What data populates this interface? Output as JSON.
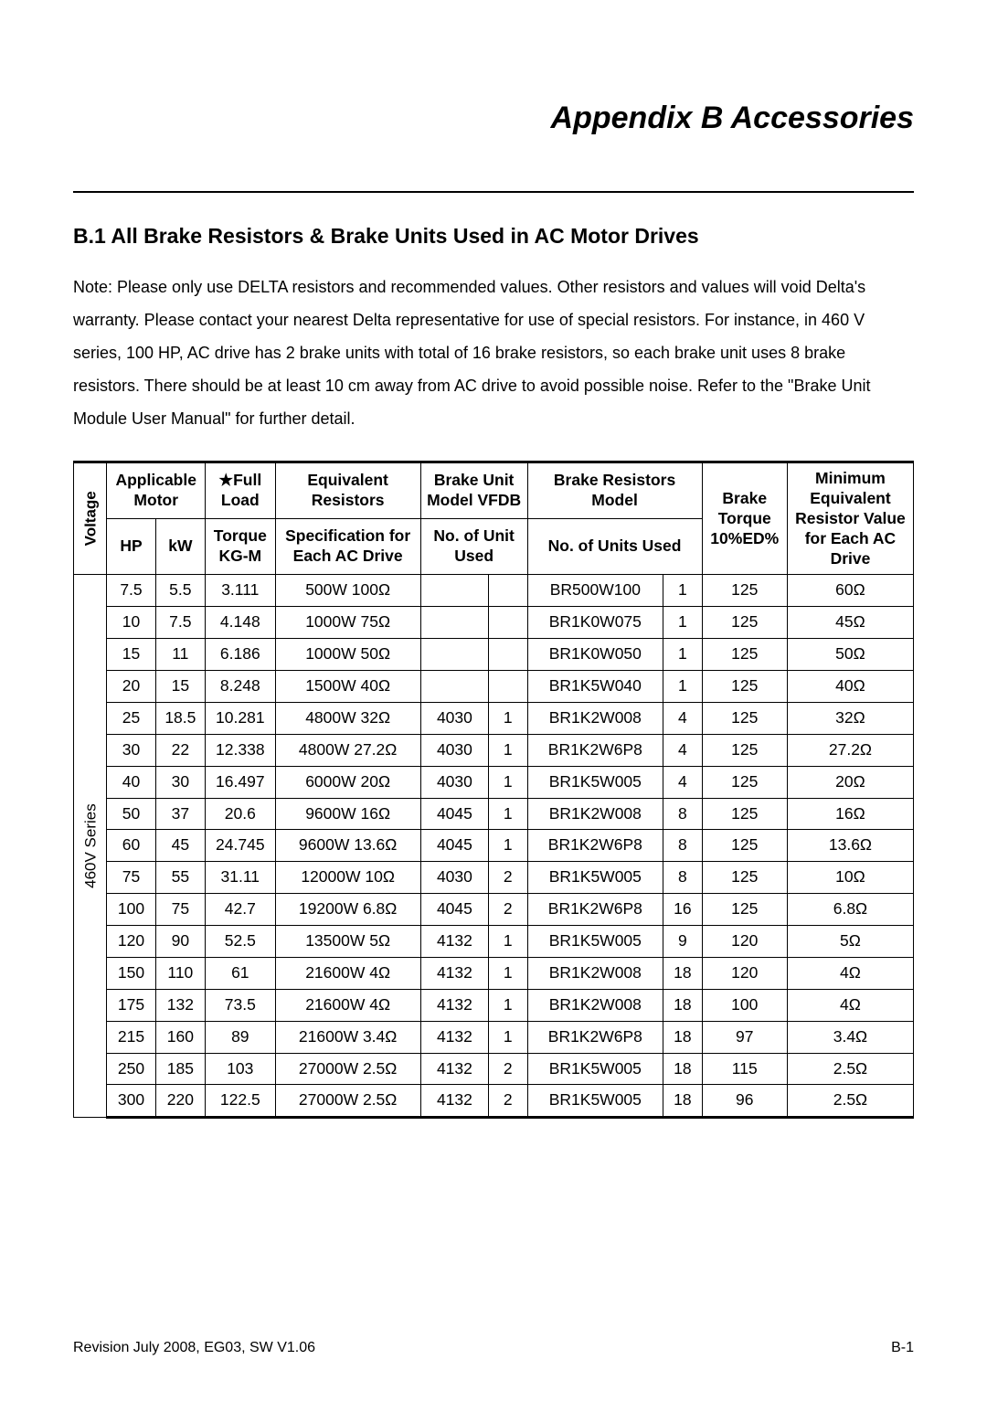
{
  "title": "Appendix B Accessories",
  "section_heading": "B.1 All Brake Resistors & Brake Units Used in AC Motor Drives",
  "note": "Note: Please only use DELTA resistors and recommended values. Other resistors and values will void Delta's warranty. Please contact your nearest Delta representative for use of special resistors. For instance, in 460 V series, 100 HP, AC drive has 2 brake units with total of 16 brake resistors, so each brake unit uses 8 brake resistors. There should be at least 10 cm away from AC drive to avoid possible noise. Refer to the \"Brake Unit Module User Manual\" for further detail.",
  "table": {
    "headers": {
      "voltage": "Voltage",
      "applicable_motor": "Applicable Motor",
      "hp": "HP",
      "kw": "kW",
      "full_load": "★Full Load",
      "torque_kgm": "Torque KG-M",
      "equiv_resistors": "Equivalent Resistors",
      "spec_each_drive": "Specification for Each AC Drive",
      "brake_unit": "Brake Unit Model VFDB",
      "brake_unit_used": "No. of Unit Used",
      "brake_resistors": "Brake Resistors Model",
      "resistors_used": "No. of Units Used",
      "brake_torque": "Brake Torque 10%ED%",
      "min_equiv": "Minimum Equivalent Resistor Value for Each AC Drive"
    },
    "voltage_label": "460V Series",
    "rows": [
      {
        "hp": "7.5",
        "kw": "5.5",
        "torque": "3.111",
        "spec": "500W 100Ω",
        "bu_model": "",
        "bu_num": "",
        "res_model": "BR500W100",
        "res_num": "1",
        "btorque": "125",
        "min": "60Ω"
      },
      {
        "hp": "10",
        "kw": "7.5",
        "torque": "4.148",
        "spec": "1000W 75Ω",
        "bu_model": "",
        "bu_num": "",
        "res_model": "BR1K0W075",
        "res_num": "1",
        "btorque": "125",
        "min": "45Ω"
      },
      {
        "hp": "15",
        "kw": "11",
        "torque": "6.186",
        "spec": "1000W 50Ω",
        "bu_model": "",
        "bu_num": "",
        "res_model": "BR1K0W050",
        "res_num": "1",
        "btorque": "125",
        "min": "50Ω"
      },
      {
        "hp": "20",
        "kw": "15",
        "torque": "8.248",
        "spec": "1500W 40Ω",
        "bu_model": "",
        "bu_num": "",
        "res_model": "BR1K5W040",
        "res_num": "1",
        "btorque": "125",
        "min": "40Ω"
      },
      {
        "hp": "25",
        "kw": "18.5",
        "torque": "10.281",
        "spec": "4800W 32Ω",
        "bu_model": "4030",
        "bu_num": "1",
        "res_model": "BR1K2W008",
        "res_num": "4",
        "btorque": "125",
        "min": "32Ω"
      },
      {
        "hp": "30",
        "kw": "22",
        "torque": "12.338",
        "spec": "4800W 27.2Ω",
        "bu_model": "4030",
        "bu_num": "1",
        "res_model": "BR1K2W6P8",
        "res_num": "4",
        "btorque": "125",
        "min": "27.2Ω"
      },
      {
        "hp": "40",
        "kw": "30",
        "torque": "16.497",
        "spec": "6000W 20Ω",
        "bu_model": "4030",
        "bu_num": "1",
        "res_model": "BR1K5W005",
        "res_num": "4",
        "btorque": "125",
        "min": "20Ω"
      },
      {
        "hp": "50",
        "kw": "37",
        "torque": "20.6",
        "spec": "9600W 16Ω",
        "bu_model": "4045",
        "bu_num": "1",
        "res_model": "BR1K2W008",
        "res_num": "8",
        "btorque": "125",
        "min": "16Ω"
      },
      {
        "hp": "60",
        "kw": "45",
        "torque": "24.745",
        "spec": "9600W 13.6Ω",
        "bu_model": "4045",
        "bu_num": "1",
        "res_model": "BR1K2W6P8",
        "res_num": "8",
        "btorque": "125",
        "min": "13.6Ω"
      },
      {
        "hp": "75",
        "kw": "55",
        "torque": "31.11",
        "spec": "12000W 10Ω",
        "bu_model": "4030",
        "bu_num": "2",
        "res_model": "BR1K5W005",
        "res_num": "8",
        "btorque": "125",
        "min": "10Ω"
      },
      {
        "hp": "100",
        "kw": "75",
        "torque": "42.7",
        "spec": "19200W 6.8Ω",
        "bu_model": "4045",
        "bu_num": "2",
        "res_model": "BR1K2W6P8",
        "res_num": "16",
        "btorque": "125",
        "min": "6.8Ω"
      },
      {
        "hp": "120",
        "kw": "90",
        "torque": "52.5",
        "spec": "13500W 5Ω",
        "bu_model": "4132",
        "bu_num": "1",
        "res_model": "BR1K5W005",
        "res_num": "9",
        "btorque": "120",
        "min": "5Ω"
      },
      {
        "hp": "150",
        "kw": "110",
        "torque": "61",
        "spec": "21600W 4Ω",
        "bu_model": "4132",
        "bu_num": "1",
        "res_model": "BR1K2W008",
        "res_num": "18",
        "btorque": "120",
        "min": "4Ω"
      },
      {
        "hp": "175",
        "kw": "132",
        "torque": "73.5",
        "spec": "21600W 4Ω",
        "bu_model": "4132",
        "bu_num": "1",
        "res_model": "BR1K2W008",
        "res_num": "18",
        "btorque": "100",
        "min": "4Ω"
      },
      {
        "hp": "215",
        "kw": "160",
        "torque": "89",
        "spec": "21600W 3.4Ω",
        "bu_model": "4132",
        "bu_num": "1",
        "res_model": "BR1K2W6P8",
        "res_num": "18",
        "btorque": "97",
        "min": "3.4Ω"
      },
      {
        "hp": "250",
        "kw": "185",
        "torque": "103",
        "spec": "27000W 2.5Ω",
        "bu_model": "4132",
        "bu_num": "2",
        "res_model": "BR1K5W005",
        "res_num": "18",
        "btorque": "115",
        "min": "2.5Ω"
      },
      {
        "hp": "300",
        "kw": "220",
        "torque": "122.5",
        "spec": "27000W 2.5Ω",
        "bu_model": "4132",
        "bu_num": "2",
        "res_model": "BR1K5W005",
        "res_num": "18",
        "btorque": "96",
        "min": "2.5Ω"
      }
    ]
  },
  "footer_left": "Revision July 2008, EG03, SW V1.06",
  "footer_right": "B-1"
}
